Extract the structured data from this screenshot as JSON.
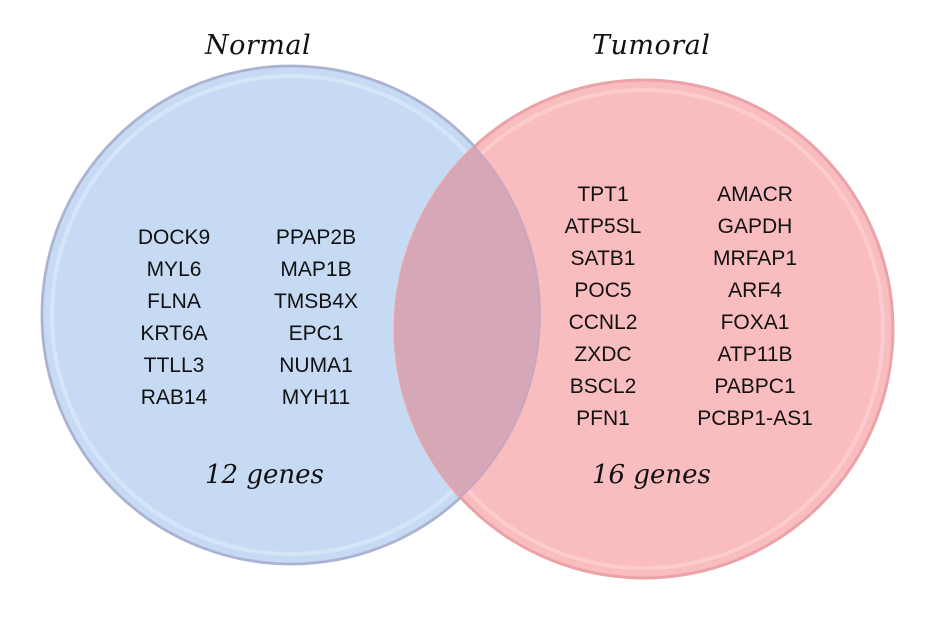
{
  "sets": {
    "normal": {
      "title": "Normal",
      "count_label": "12 genes",
      "color": "#c6dbf3",
      "stroke": "#a9c4e4",
      "genes_col1": [
        "DOCK9",
        "MYL6",
        "FLNA",
        "KRT6A",
        "TTLL3",
        "RAB14"
      ],
      "genes_col2": [
        "PPAP2B",
        "MAP1B",
        "TMSB4X",
        "EPC1",
        "NUMA1",
        "MYH11"
      ]
    },
    "tumoral": {
      "title": "Tumoral",
      "count_label": "16 genes",
      "color": "#f9bcbf",
      "stroke": "#eaa3a8",
      "genes_col1": [
        "TPT1",
        "ATP5SL",
        "SATB1",
        "POC5",
        "CCNL2",
        "ZXDC",
        "BSCL2",
        "PFN1"
      ],
      "genes_col2": [
        "AMACR",
        "GAPDH",
        "MRFAP1",
        "ARF4",
        "FOXA1",
        "ATP11B",
        "PABPC1",
        "PCBP1-AS1"
      ]
    },
    "overlap_color": "#d6a7b6"
  }
}
